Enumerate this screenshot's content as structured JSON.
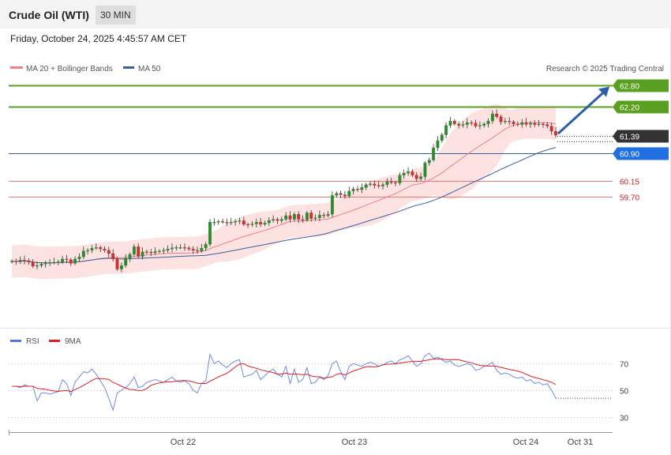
{
  "instrument": "Crude Oil (WTI)",
  "timeframe": "30 MIN",
  "timestamp": "Friday, October 24, 2025 4:45:57 AM CET",
  "copyright": "Research © 2025 Trading Central",
  "colors": {
    "resistance": "#5aa020",
    "support": "#e85c5c",
    "pivot": "#2a5ea8",
    "current": "#333333",
    "pivot_label": "#1f6fe0",
    "bollinger_fill": "#fde2e2",
    "ma20": "#f08080",
    "ma50": "#3a5f9e",
    "candle_up": "#2f8a2f",
    "candle_down": "#d03030",
    "rsi": "#5577dd",
    "rsi_ma": "#e02020",
    "arrow": "#2a5ea8"
  },
  "chart_data": [
    {
      "type": "candlestick",
      "title": "Crude Oil (WTI)",
      "legend": [
        "MA 20 + Bollinger Bands",
        "MA 50"
      ],
      "legend_placement": "top-left",
      "y_range": [
        57.4,
        63.0
      ],
      "x_ticks": [
        "Oct 22",
        "Oct 23",
        "Oct 24",
        "Oct 31"
      ],
      "levels": [
        {
          "label": "62.80",
          "value": 62.8,
          "kind": "resistance"
        },
        {
          "label": "62.20",
          "value": 62.2,
          "kind": "resistance"
        },
        {
          "label": "61.39",
          "value": 61.39,
          "kind": "current"
        },
        {
          "label": "60.90",
          "value": 60.9,
          "kind": "pivot"
        },
        {
          "label": "60.15",
          "value": 60.15,
          "kind": "support"
        },
        {
          "label": "59.70",
          "value": 59.7,
          "kind": "support"
        }
      ],
      "closes": [
        57.92,
        57.9,
        57.95,
        57.93,
        57.89,
        57.78,
        57.8,
        57.84,
        57.86,
        57.88,
        57.89,
        57.9,
        57.98,
        57.96,
        57.86,
        57.98,
        58.04,
        58.2,
        58.22,
        58.28,
        58.3,
        58.26,
        58.22,
        58.13,
        57.98,
        57.7,
        57.8,
        58.0,
        58.11,
        58.32,
        58.05,
        58.18,
        58.17,
        58.16,
        58.19,
        58.2,
        58.22,
        58.26,
        58.29,
        58.3,
        58.3,
        58.29,
        58.26,
        58.22,
        58.2,
        58.28,
        58.39,
        59.0,
        59.0,
        59.02,
        59.0,
        58.98,
        59.0,
        59.02,
        59.04,
        58.94,
        58.93,
        58.95,
        59.0,
        58.94,
        58.98,
        59.05,
        59.08,
        59.04,
        59.08,
        59.18,
        59.08,
        59.22,
        59.08,
        59.06,
        59.26,
        59.1,
        59.12,
        59.2,
        59.18,
        59.22,
        59.74,
        59.8,
        59.76,
        59.72,
        59.86,
        59.92,
        59.9,
        59.96,
        60.04,
        60.06,
        60.02,
        60.0,
        60.04,
        60.12,
        60.1,
        60.08,
        60.3,
        60.36,
        60.4,
        60.3,
        60.2,
        60.26,
        60.64,
        60.72,
        61.06,
        61.26,
        61.42,
        61.68,
        61.8,
        61.72,
        61.68,
        61.7,
        61.76,
        61.75,
        61.66,
        61.68,
        61.72,
        61.8,
        62.0,
        61.92,
        61.78,
        61.8,
        61.78,
        61.72,
        61.7,
        61.76,
        61.71,
        61.74,
        61.7,
        61.72,
        61.7,
        61.66,
        61.52,
        61.41
      ]
    },
    {
      "type": "line",
      "legend": [
        "RSI",
        "9MA"
      ],
      "legend_placement": "top-left",
      "y_ticks": [
        70,
        50,
        30
      ],
      "rsi": [
        53,
        53,
        52,
        54,
        53,
        53,
        42,
        48,
        48,
        47,
        48,
        49,
        58,
        55,
        46,
        56,
        60,
        64,
        63,
        66,
        62,
        57,
        52,
        44,
        35,
        48,
        50,
        52,
        55,
        60,
        52,
        53,
        56,
        57,
        58,
        57,
        56,
        58,
        60,
        57,
        56,
        57,
        55,
        50,
        48,
        55,
        57,
        77,
        70,
        72,
        69,
        67,
        70,
        72,
        73,
        60,
        61,
        62,
        65,
        58,
        61,
        64,
        66,
        62,
        60,
        68,
        55,
        66,
        56,
        58,
        67,
        55,
        56,
        60,
        58,
        61,
        70,
        72,
        64,
        58,
        68,
        70,
        69,
        68,
        70,
        71,
        70,
        68,
        69,
        71,
        72,
        70,
        73,
        74,
        76,
        72,
        68,
        70,
        76,
        78,
        74,
        75,
        73,
        71,
        72,
        69,
        68,
        69,
        70,
        69,
        65,
        66,
        68,
        69,
        71,
        65,
        62,
        63,
        62,
        60,
        59,
        60,
        57,
        58,
        55,
        56,
        54,
        55,
        50,
        44
      ]
    }
  ]
}
